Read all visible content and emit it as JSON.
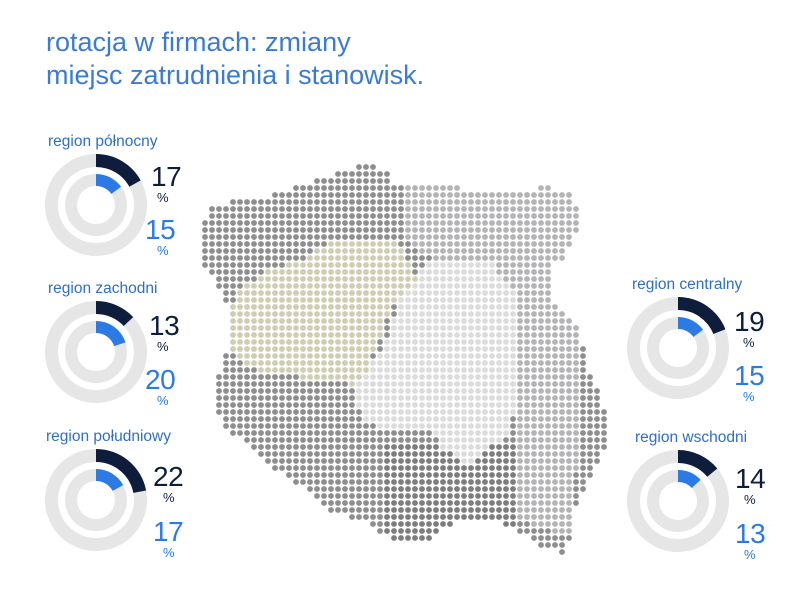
{
  "title": {
    "line1": "rotacja w firmach: zmiany",
    "line2": "miejsc zatrudnienia i stanowisk."
  },
  "colors": {
    "title": "#3a7bd5",
    "dark_series": "#0f1d3d",
    "blue_series": "#2c7be5",
    "track": "#e6e6e6"
  },
  "chart_data": {
    "type": "donut",
    "unit": "%",
    "series": [
      {
        "key": "zmiany miejsc zatrudnienia",
        "color": "#0f1d3d"
      },
      {
        "key": "zmiany stanowisk",
        "color": "#2c7be5"
      }
    ],
    "regions": [
      {
        "label": "region północny",
        "outer": 17,
        "inner": 15
      },
      {
        "label": "region zachodni",
        "outer": 13,
        "inner": 20
      },
      {
        "label": "region południowy",
        "outer": 22,
        "inner": 17
      },
      {
        "label": "region centralny",
        "outer": 19,
        "inner": 15
      },
      {
        "label": "region wschodni",
        "outer": 14,
        "inner": 13
      }
    ]
  },
  "percent_sign": "%"
}
